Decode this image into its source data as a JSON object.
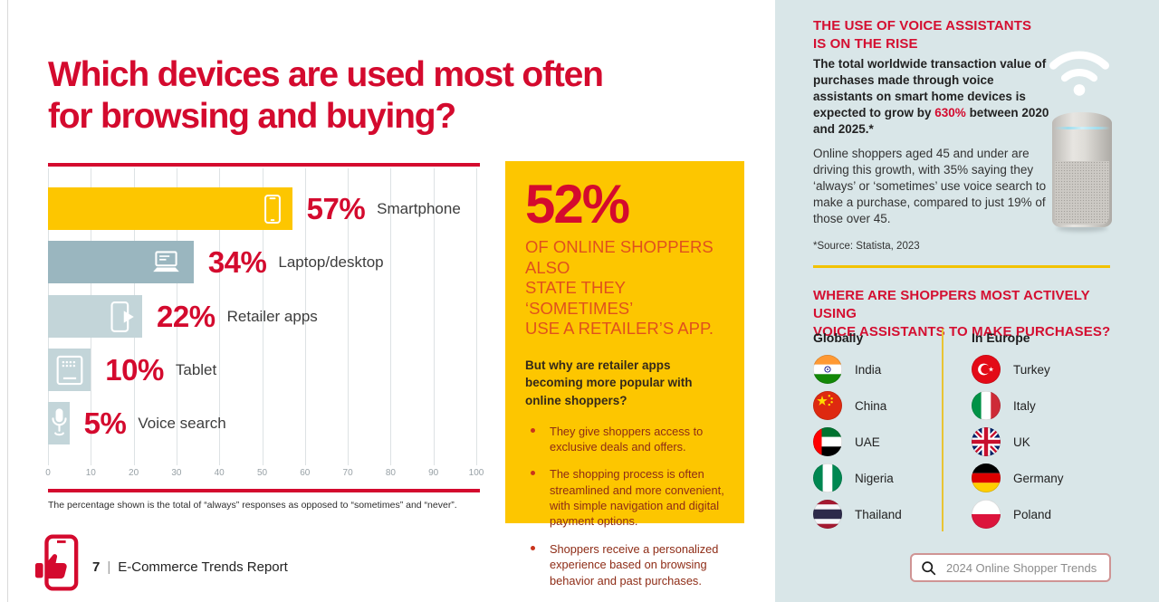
{
  "colors": {
    "primary_red": "#d40a2e",
    "accent_yellow": "#fdc600",
    "sidebar_background": "#d9e6e8",
    "bar_teal_dark": "#9ab6bf",
    "bar_teal_light": "#c3d5d9"
  },
  "main": {
    "title_lines": [
      "Which devices are used most often",
      "for browsing and buying?"
    ],
    "footnote": "The percentage shown is the total of “always” responses as opposed to “sometimes” and “never”.",
    "footer": {
      "page_number": "7",
      "separator": "|",
      "report_title": "E-Commerce Trends Report",
      "logo_icon": "thumbs-up-phone-icon"
    }
  },
  "chart_data": {
    "type": "bar",
    "orientation": "horizontal",
    "title": "",
    "xlabel": "",
    "ylabel": "",
    "xlim": [
      0,
      100
    ],
    "x_ticks": [
      0,
      10,
      20,
      30,
      40,
      50,
      60,
      70,
      80,
      90,
      100
    ],
    "grid": true,
    "categories": [
      "Smartphone",
      "Laptop/desktop",
      "Retailer apps",
      "Tablet",
      "Voice search"
    ],
    "values": [
      57,
      34,
      22,
      10,
      5
    ],
    "value_labels": [
      "57%",
      "34%",
      "22%",
      "10%",
      "5%"
    ],
    "icons": [
      "smartphone-icon",
      "laptop-icon",
      "retailer-apps-icon",
      "tablet-icon",
      "microphone-icon"
    ],
    "bar_colors": [
      "#fdc600",
      "#9ab6bf",
      "#c3d5d9",
      "#c3d5d9",
      "#c3d5d9"
    ]
  },
  "highlight_box": {
    "stat": "52%",
    "subtitle_lines": [
      "OF ONLINE SHOPPERS ALSO",
      "STATE THEY ‘SOMETIMES’",
      "USE A RETAILER’S APP."
    ],
    "question": "But why are retailer apps becoming more popular with online shoppers?",
    "bullets": [
      "They give shoppers access to exclusive deals and offers.",
      "The shopping process is often streamlined and more convenient, with simple navigation and digital payment options.",
      "Shoppers receive a personalized experience based on browsing behavior and past purchases."
    ]
  },
  "sidebar": {
    "voice_section": {
      "heading_lines": [
        "THE USE OF VOICE ASSISTANTS",
        "IS ON THE RISE"
      ],
      "lead_before": "The total worldwide transaction value of purchases made through voice assistants on smart home devices is expected to grow by ",
      "lead_highlight": "630%",
      "lead_after": " between 2020 and 2025.*",
      "body": "Online shoppers aged 45 and under are driving this growth, with 35% saying they ‘always’ or ‘sometimes’ use voice search to make a purchase, compared to just 19% of those over 45.",
      "source": "*Source: Statista, 2023",
      "illustration_icons": [
        "wifi-icon",
        "smart-speaker"
      ]
    },
    "purchases_section": {
      "heading_lines": [
        "WHERE ARE SHOPPERS MOST ACTIVELY USING",
        "VOICE ASSISTANTS TO MAKE PURCHASES?"
      ],
      "columns": [
        {
          "header": "Globally",
          "countries": [
            {
              "name": "India",
              "flag": "flag-india"
            },
            {
              "name": "China",
              "flag": "flag-china"
            },
            {
              "name": "UAE",
              "flag": "flag-uae"
            },
            {
              "name": "Nigeria",
              "flag": "flag-nigeria"
            },
            {
              "name": "Thailand",
              "flag": "flag-thailand"
            }
          ]
        },
        {
          "header": "In Europe",
          "countries": [
            {
              "name": "Turkey",
              "flag": "flag-turkey"
            },
            {
              "name": "Italy",
              "flag": "flag-italy"
            },
            {
              "name": "UK",
              "flag": "flag-uk"
            },
            {
              "name": "Germany",
              "flag": "flag-germany"
            },
            {
              "name": "Poland",
              "flag": "flag-poland"
            }
          ]
        }
      ]
    },
    "search": {
      "placeholder": "2024 Online Shopper Trends",
      "icon": "search-icon"
    }
  }
}
